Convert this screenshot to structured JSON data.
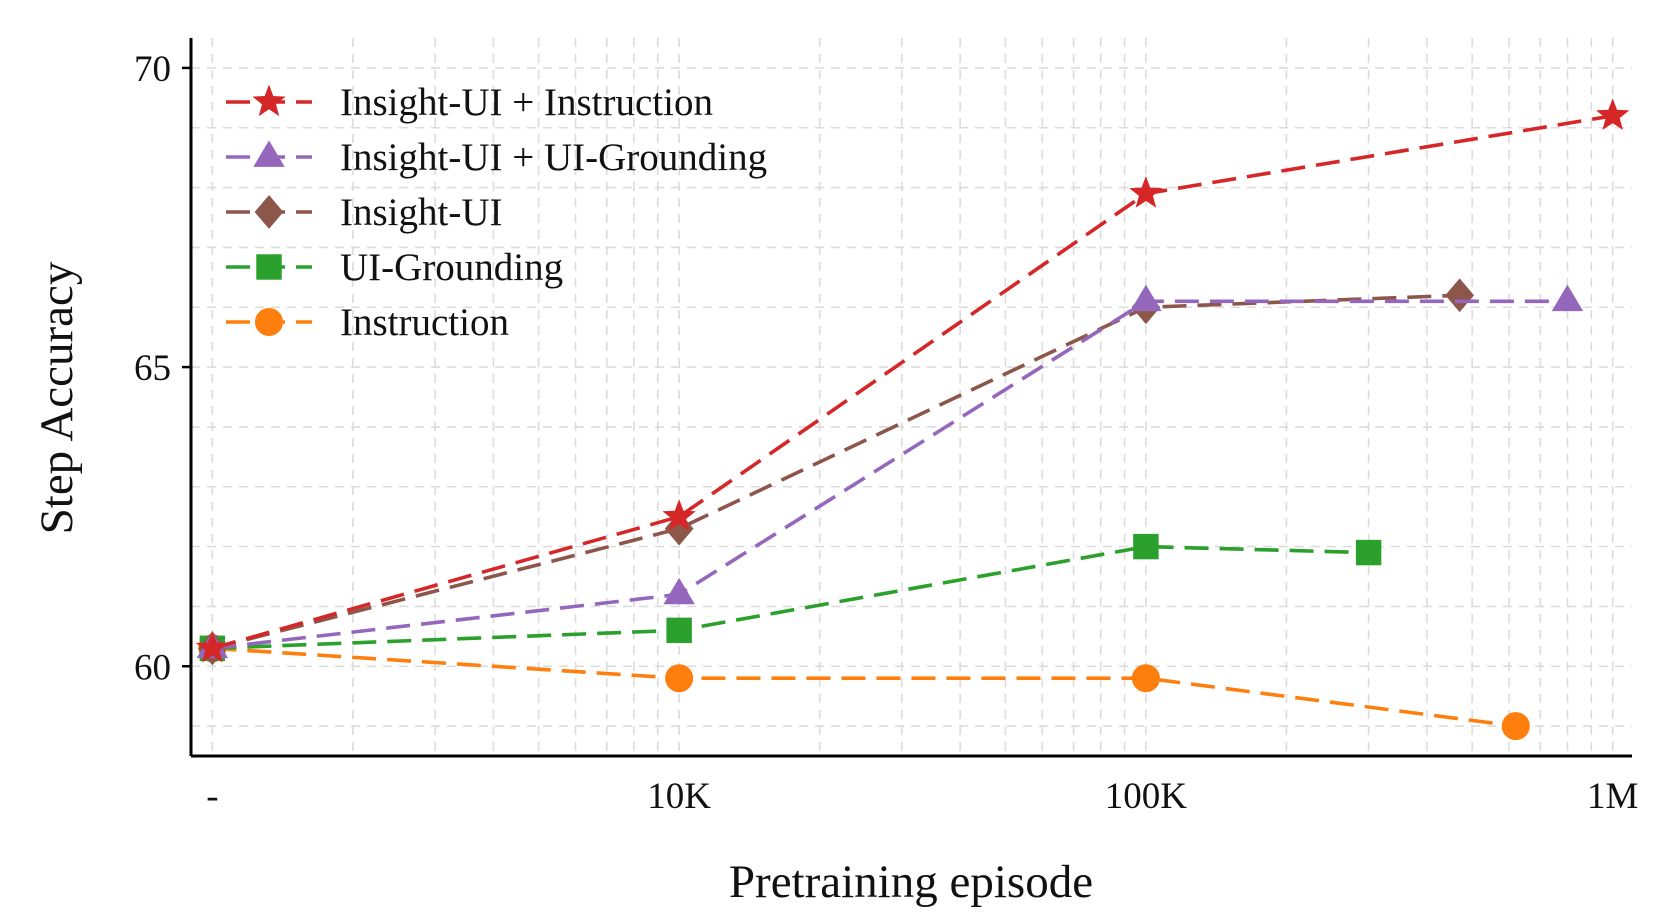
{
  "chart_data": {
    "type": "line",
    "title": "",
    "xlabel": "Pretraining episode",
    "ylabel": "Step Accuracy",
    "x_scale": "log",
    "x_baseline_value": 1000,
    "xlim": [
      900,
      1100000
    ],
    "ylim": [
      58.5,
      70.5
    ],
    "xticks": [
      {
        "value": 1000,
        "label": "-"
      },
      {
        "value": 10000,
        "label": "10K"
      },
      {
        "value": 100000,
        "label": "100K"
      },
      {
        "value": 1000000,
        "label": "1M"
      }
    ],
    "yticks": [
      {
        "value": 60,
        "label": "60"
      },
      {
        "value": 65,
        "label": "65"
      },
      {
        "value": 70,
        "label": "70"
      }
    ],
    "grid": true,
    "legend_position": "top-left",
    "series": [
      {
        "name": "Insight-UI + Instruction",
        "color": "#d62728",
        "marker": "star",
        "x": [
          1000,
          10000,
          100000,
          1000000
        ],
        "values": [
          60.3,
          62.5,
          67.9,
          69.2
        ]
      },
      {
        "name": "Insight-UI + UI-Grounding",
        "color": "#9467bd",
        "marker": "triangle",
        "x": [
          1000,
          10000,
          100000,
          800000
        ],
        "values": [
          60.3,
          61.2,
          66.1,
          66.1
        ]
      },
      {
        "name": "Insight-UI",
        "color": "#8c564b",
        "marker": "diamond",
        "x": [
          1000,
          10000,
          100000,
          470000
        ],
        "values": [
          60.3,
          62.3,
          66.0,
          66.2
        ]
      },
      {
        "name": "UI-Grounding",
        "color": "#2ca02c",
        "marker": "square",
        "x": [
          1000,
          10000,
          100000,
          300000
        ],
        "values": [
          60.3,
          60.6,
          62.0,
          61.9
        ]
      },
      {
        "name": "Instruction",
        "color": "#ff7f0e",
        "marker": "circle",
        "x": [
          1000,
          10000,
          100000,
          620000
        ],
        "values": [
          60.3,
          59.8,
          59.8,
          59.0
        ]
      }
    ]
  }
}
